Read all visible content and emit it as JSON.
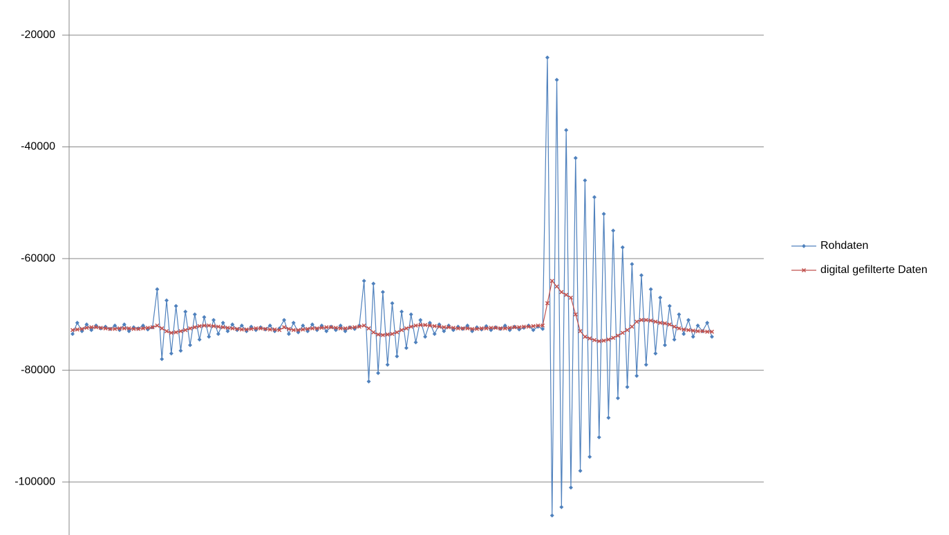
{
  "chart_data": {
    "type": "line",
    "ylim": [
      -109500,
      -13700
    ],
    "yticks": [
      -20000,
      -40000,
      -60000,
      -80000,
      -100000
    ],
    "grid": true,
    "legend": "right",
    "series": [
      {
        "name": "Rohdaten",
        "color": "#4f81bd",
        "marker": "diamond",
        "values": [
          -73500,
          -71500,
          -73000,
          -71800,
          -72800,
          -72000,
          -72500,
          -72200,
          -72600,
          -72000,
          -72800,
          -71800,
          -73000,
          -72300,
          -72500,
          -72000,
          -72700,
          -72300,
          -65500,
          -78000,
          -67500,
          -77000,
          -68500,
          -76500,
          -69500,
          -75500,
          -70000,
          -74500,
          -70500,
          -74000,
          -71000,
          -73500,
          -71500,
          -73000,
          -71800,
          -72800,
          -72000,
          -73000,
          -72200,
          -72800,
          -72300,
          -72700,
          -72000,
          -73000,
          -72500,
          -71000,
          -73500,
          -71500,
          -73200,
          -72000,
          -73000,
          -71800,
          -72800,
          -72000,
          -73000,
          -72200,
          -72800,
          -72000,
          -73000,
          -72300,
          -72600,
          -72000,
          -64000,
          -82000,
          -64500,
          -80500,
          -66000,
          -79000,
          -68000,
          -77500,
          -69500,
          -76000,
          -70000,
          -75000,
          -71000,
          -74000,
          -71500,
          -73500,
          -71800,
          -73000,
          -72000,
          -72800,
          -72200,
          -72600,
          -72000,
          -73000,
          -72300,
          -72700,
          -72100,
          -72800,
          -72300,
          -72600,
          -72000,
          -72800,
          -72200,
          -72700,
          -72400,
          -72000,
          -72800,
          -72200,
          -72600,
          -24000,
          -106000,
          -28000,
          -104500,
          -37000,
          -101000,
          -42000,
          -98000,
          -46000,
          -95500,
          -49000,
          -92000,
          -52000,
          -88500,
          -55000,
          -85000,
          -58000,
          -83000,
          -61000,
          -81000,
          -63000,
          -79000,
          -65500,
          -77000,
          -67000,
          -75500,
          -68500,
          -74500,
          -70000,
          -73500,
          -71000,
          -74000,
          -72000,
          -73000,
          -71500,
          -74000
        ]
      },
      {
        "name": "digital gefilterte Daten",
        "color": "#c0504d",
        "marker": "x",
        "values": [
          -72800,
          -72700,
          -72600,
          -72400,
          -72300,
          -72300,
          -72400,
          -72500,
          -72600,
          -72600,
          -72500,
          -72500,
          -72500,
          -72600,
          -72600,
          -72500,
          -72400,
          -72300,
          -72000,
          -72500,
          -73000,
          -73300,
          -73200,
          -73000,
          -72800,
          -72500,
          -72300,
          -72100,
          -72000,
          -72000,
          -72100,
          -72200,
          -72300,
          -72400,
          -72500,
          -72600,
          -72700,
          -72700,
          -72600,
          -72500,
          -72500,
          -72600,
          -72700,
          -72700,
          -72800,
          -72300,
          -72600,
          -72800,
          -72800,
          -72700,
          -72600,
          -72500,
          -72500,
          -72400,
          -72300,
          -72300,
          -72400,
          -72500,
          -72500,
          -72400,
          -72300,
          -72200,
          -72000,
          -72500,
          -73200,
          -73600,
          -73700,
          -73600,
          -73500,
          -73200,
          -72800,
          -72500,
          -72200,
          -72000,
          -71900,
          -71900,
          -72000,
          -72100,
          -72200,
          -72300,
          -72300,
          -72400,
          -72500,
          -72500,
          -72500,
          -72600,
          -72600,
          -72500,
          -72500,
          -72400,
          -72400,
          -72500,
          -72500,
          -72400,
          -72300,
          -72300,
          -72200,
          -72200,
          -72100,
          -72000,
          -72000,
          -68000,
          -64000,
          -65000,
          -66000,
          -66500,
          -67000,
          -70000,
          -73000,
          -74000,
          -74300,
          -74600,
          -74800,
          -74700,
          -74500,
          -74200,
          -73800,
          -73300,
          -72800,
          -72200,
          -71300,
          -71000,
          -71000,
          -71100,
          -71300,
          -71500,
          -71600,
          -71800,
          -72200,
          -72500,
          -72700,
          -72800,
          -72900,
          -73000,
          -73000,
          -73100,
          -73100
        ]
      }
    ]
  }
}
